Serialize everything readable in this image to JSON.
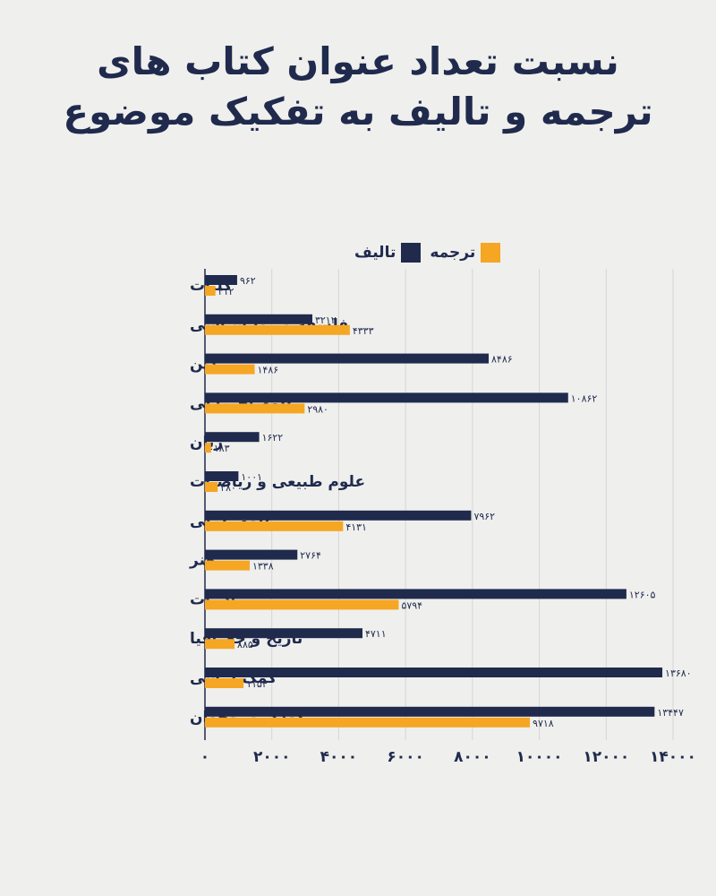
{
  "title": {
    "line1": "نسبت تعداد عنوان کتاب های",
    "line2": "ترجمه و تالیف به تفکیک موضوع"
  },
  "colors": {
    "background": "#efefed",
    "talif": "#1f2a4d",
    "tarjome": "#f5a623",
    "text": "#1f2a4d",
    "grid": "#d5d5d5"
  },
  "chart_data": {
    "type": "bar",
    "orientation": "horizontal",
    "categories": [
      "کلیات",
      "فلسفه و روانشناسی",
      "دین",
      "علوم اجتماعی",
      "زبان",
      "علوم طبیعی و ریاضیات",
      "علوم عملی",
      "هنر",
      "ادبیات",
      "تاریخ و جغرافیا",
      "کمک درسی",
      "کودک و نوجوان"
    ],
    "series": [
      {
        "name": "تالیف",
        "color": "#1f2a4d",
        "values": [
          962,
          3212,
          8486,
          10862,
          1622,
          1001,
          7962,
          2764,
          12605,
          4711,
          13680,
          13447
        ],
        "labels": [
          "۹۶۲",
          "۳۲۱۲",
          "۸۴۸۶",
          "۱۰۸۶۲",
          "۱۶۲۲",
          "۱۰۰۱",
          "۷۹۶۲",
          "۲۷۶۴",
          "۱۲۶۰۵",
          "۴۷۱۱",
          "۱۳۶۸۰",
          "۱۳۴۴۷"
        ]
      },
      {
        "name": "ترجمه",
        "color": "#f5a623",
        "values": [
          312,
          4333,
          1486,
          2980,
          183,
          380,
          4131,
          1338,
          5794,
          885,
          1154,
          9718
        ],
        "labels": [
          "۳۱۲",
          "۴۳۳۳",
          "۱۴۸۶",
          "۲۹۸۰",
          "۱۸۳",
          "۳۸۰",
          "۴۱۳۱",
          "۱۳۳۸",
          "۵۷۹۴",
          "۸۸۵",
          "۱۱۵۴",
          "۹۷۱۸"
        ]
      }
    ],
    "xlim": [
      0,
      14000
    ],
    "ticks": [
      0,
      2000,
      4000,
      6000,
      8000,
      10000,
      12000,
      14000
    ],
    "tick_labels": [
      "۰",
      "۲۰۰۰",
      "۴۰۰۰",
      "۶۰۰۰",
      "۸۰۰۰",
      "۱۰۰۰۰",
      "۱۲۰۰۰",
      "۱۴۰۰۰"
    ],
    "grid": true,
    "legend_position": "top"
  }
}
